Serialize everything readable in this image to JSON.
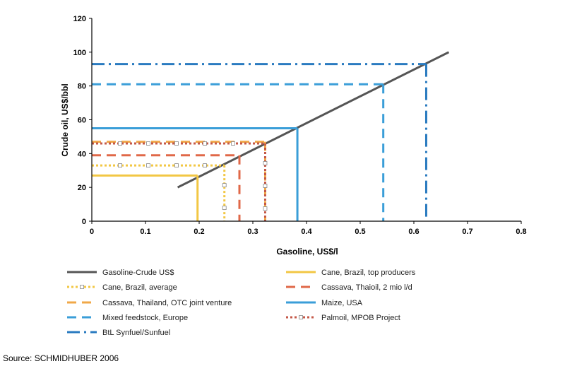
{
  "chart_data": {
    "type": "line",
    "xlabel": "Gasoline, US$/l",
    "ylabel": "Crude oil, US$/bbl",
    "xlim": [
      0,
      0.8
    ],
    "ylim": [
      0,
      120
    ],
    "x_ticks": [
      "0",
      "0.1",
      "0.2",
      "0.3",
      "0.4",
      "0.5",
      "0.6",
      "0.7",
      "0.8"
    ],
    "y_ticks": [
      "0",
      "20",
      "40",
      "60",
      "80",
      "100",
      "120"
    ],
    "grid": false,
    "legend_position": "bottom",
    "series": [
      {
        "name": "Gasoline-Crude US$",
        "style": "solid",
        "color": "#555555",
        "x": [
          0.16,
          0.665
        ],
        "y": [
          20,
          100
        ]
      },
      {
        "name": "Cane, Brazil, top producers",
        "style": "solid",
        "color": "#f2c744",
        "gasoline": 0.197,
        "crude": 27
      },
      {
        "name": "Cane, Brazil, average",
        "style": "dotted-markers",
        "color": "#f2c744",
        "gasoline": 0.247,
        "crude": 33
      },
      {
        "name": "Cassava, Thaioil, 2 mio l/d",
        "style": "dashed",
        "color": "#e06848",
        "gasoline": 0.275,
        "crude": 39
      },
      {
        "name": "Cassava, Thailand, OTC joint venture",
        "style": "dashed",
        "color": "#f0a848",
        "gasoline": 0.323,
        "crude": 47
      },
      {
        "name": "Maize, USA",
        "style": "solid",
        "color": "#3a9ed8",
        "gasoline": 0.383,
        "crude": 55
      },
      {
        "name": "Mixed feedstock, Europe",
        "style": "dashed",
        "color": "#3a9ed8",
        "gasoline": 0.543,
        "crude": 81
      },
      {
        "name": "Palmoil, MPOB Project",
        "style": "dotted-markers",
        "color": "#c45848",
        "gasoline": 0.323,
        "crude": 46
      },
      {
        "name": "BtL Synfuel/Sunfuel",
        "style": "dash-dot",
        "color": "#2a7bc0",
        "gasoline": 0.623,
        "crude": 93
      }
    ]
  },
  "source": "Source: SCHMIDHUBER 2006"
}
